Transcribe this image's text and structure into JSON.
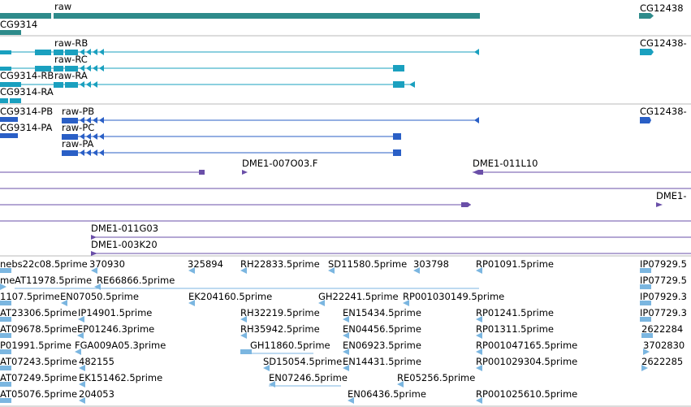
{
  "colors": {
    "gene": "#2e8b8b",
    "transcript_rna": "#1aa0bf",
    "transcript_protein": "#2a5fc6",
    "clone": "#6a4fa8",
    "est": "#7bb6e0",
    "separator": "#b8b8b8"
  },
  "tracks": {
    "genes": {
      "labels": [
        "raw",
        "CG12438",
        "CG9314"
      ]
    },
    "rna_transcripts": {
      "labels": [
        "raw-RB",
        "CG12438-",
        "raw-RC",
        "CG9314-RB",
        "raw-RA",
        "CG9314-RA"
      ]
    },
    "protein_transcripts": {
      "labels": [
        "CG9314-PB",
        "raw-PB",
        "CG12438-",
        "CG9314-PA",
        "raw-PC",
        "raw-PA"
      ]
    },
    "clones_1": {
      "labels": [
        "DME1-007O03.F",
        "DME1-011L10"
      ]
    },
    "clones_2": {
      "labels": [
        "DME1-"
      ]
    },
    "clones_3": {
      "labels": [
        "DME1-011G03",
        "DME1-003K20"
      ]
    },
    "ests": {
      "labels": [
        "nebs22c08.5prime",
        "370930",
        "325894",
        "RH22833.5prime",
        "SD11580.5prime",
        "303798",
        "RP01091.5prime",
        "IP07929.5",
        "me",
        "AT11978.5prime",
        "RE66866.5prime",
        "IP07729.5",
        "1107.5prime",
        "EN07050.5prime",
        "EK204160.5prime",
        "GH22241.5prime",
        "RP001030149.5prime",
        "IP07929.3",
        "AT23306.5prime",
        "IP14901.5prime",
        "RH32219.5prime",
        "EN15434.5prime",
        "RP01241.5prime",
        "IP07729.3",
        "AT09678.5prime",
        "EP01246.3prime",
        "RH35942.5prime",
        "EN04456.5prime",
        "RP01311.5prime",
        "2622284",
        "P01991.5prime",
        "FGA009A05.3prime",
        "GH11860.5prime",
        "EN06923.5prime",
        "RP001047165.5prime",
        "3702830",
        "AT07243.5prime",
        "482155",
        "SD15054.5prime",
        "EN14431.5prime",
        "RP001029304.5prime",
        "2622285",
        "AT07249.5prime",
        "EK151462.5prime",
        "EN07246.5prime",
        "RE05256.5prime",
        "AT05076.5prime",
        "204053",
        "EN06436.5prime",
        "RP001025610.5prime"
      ]
    }
  }
}
